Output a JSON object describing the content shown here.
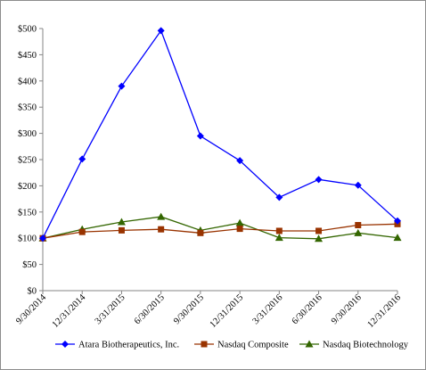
{
  "chart_data": {
    "type": "line",
    "title": "",
    "xlabel": "",
    "ylabel": "",
    "categories": [
      "9/30/2014",
      "12/31/2014",
      "3/31/2015",
      "6/30/2015",
      "9/30/2015",
      "12/31/2015",
      "3/31/2016",
      "6/30/2016",
      "9/30/2016",
      "12/31/2016"
    ],
    "y_ticks": [
      "$0",
      "$50",
      "$100",
      "$150",
      "$200",
      "$250",
      "$300",
      "$350",
      "$400",
      "$450",
      "$500"
    ],
    "ylim": [
      0,
      500
    ],
    "grid": false,
    "legend_position": "bottom",
    "series": [
      {
        "name": "Atara Biotherapeutics, Inc.",
        "color": "#0000ff",
        "marker": "diamond",
        "values": [
          100,
          251,
          390,
          496,
          295,
          248,
          178,
          212,
          201,
          133
        ]
      },
      {
        "name": "Nasdaq Composite",
        "color": "#993300",
        "marker": "square",
        "values": [
          100,
          112,
          115,
          117,
          110,
          118,
          114,
          114,
          125,
          127
        ]
      },
      {
        "name": "Nasdaq Biotechnology",
        "color": "#336600",
        "marker": "triangle",
        "values": [
          100,
          117,
          131,
          141,
          115,
          129,
          101,
          99,
          110,
          101
        ]
      }
    ]
  }
}
